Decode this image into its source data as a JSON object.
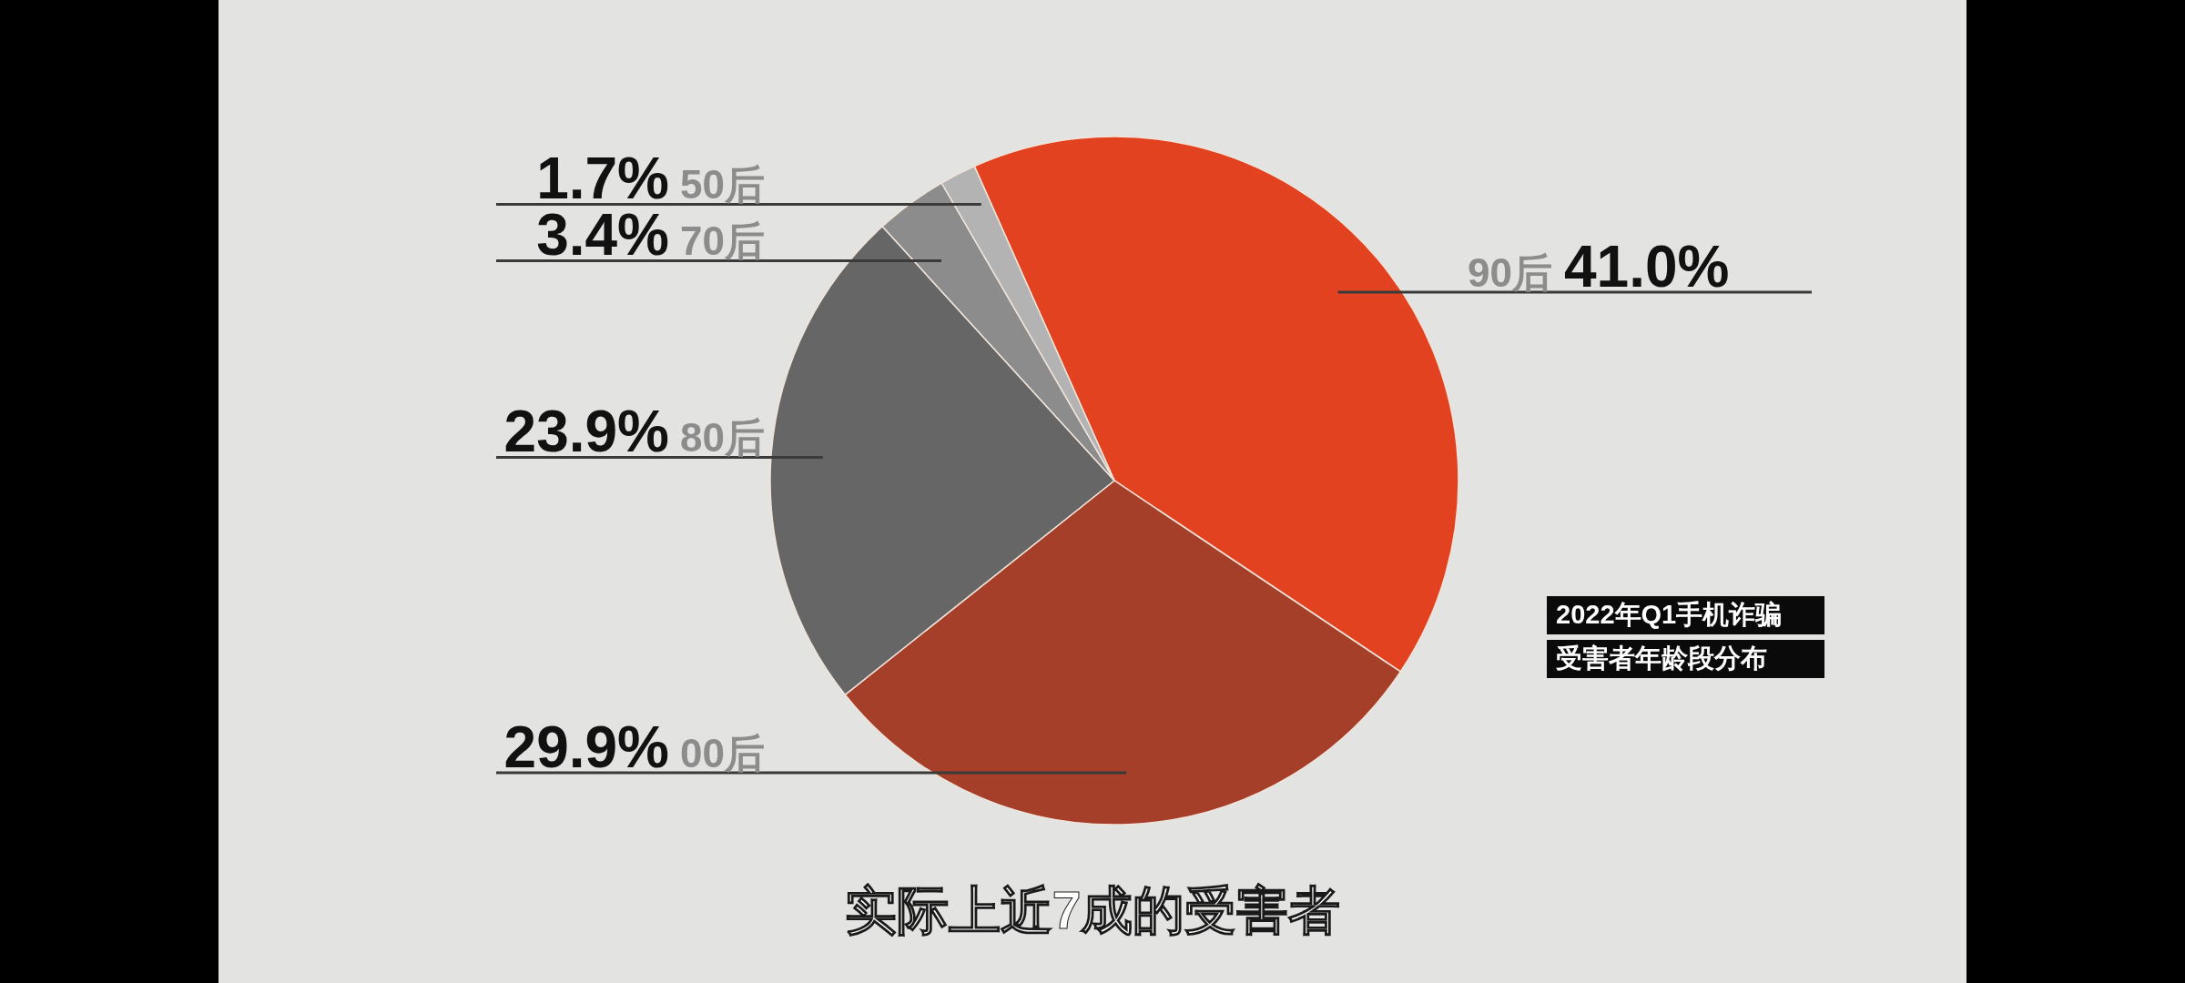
{
  "chart_data": {
    "type": "pie",
    "title": "2022年Q1手机诈骗",
    "subtitle": "受害者年龄段分布",
    "categories": [
      "90后",
      "00后",
      "80后",
      "70后",
      "50后"
    ],
    "values": [
      41.0,
      29.9,
      23.9,
      3.4,
      1.7
    ],
    "colors": [
      "#e2421f",
      "#a53f2a",
      "#666666",
      "#8c8c8c",
      "#b3b3b3"
    ],
    "value_labels": [
      "41.0%",
      "29.9%",
      "23.9%",
      "3.4%",
      "1.7%"
    ],
    "annotations": [
      "实际上近7成的受害者"
    ]
  }
}
